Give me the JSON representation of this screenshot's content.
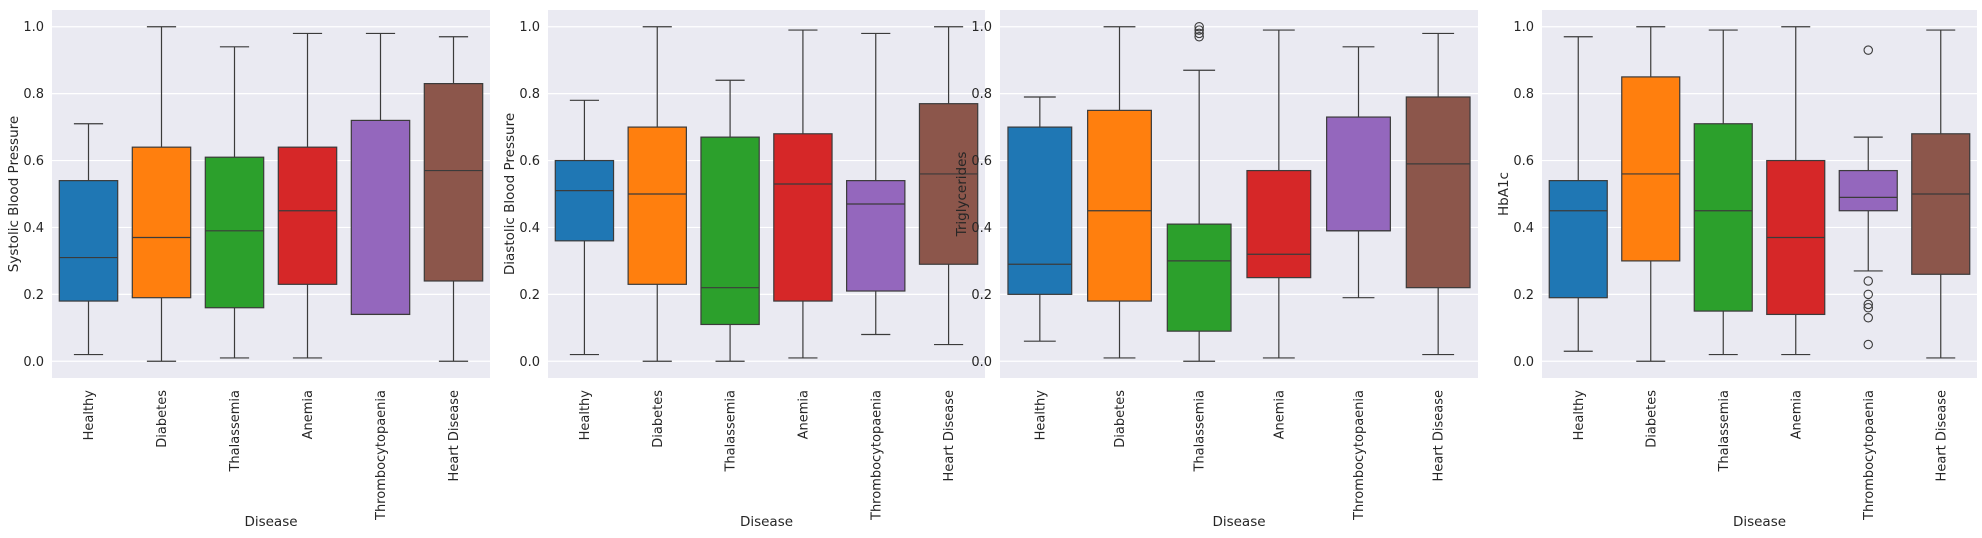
{
  "chart_data": [
    {
      "type": "box",
      "xlabel": "Disease",
      "ylabel": "Systolic Blood Pressure",
      "ylim": [
        -0.05,
        1.05
      ],
      "yticks": [
        "0.0",
        "0.2",
        "0.4",
        "0.6",
        "0.8",
        "1.0"
      ],
      "grid": true,
      "categories": [
        "Healthy",
        "Diabetes",
        "Thalassemia",
        "Anemia",
        "Thrombocytopaenia",
        "Heart Disease"
      ],
      "boxes": [
        {
          "min": 0.02,
          "q1": 0.18,
          "median": 0.31,
          "q3": 0.54,
          "max": 0.71,
          "outliers": []
        },
        {
          "min": 0.0,
          "q1": 0.19,
          "median": 0.37,
          "q3": 0.64,
          "max": 1.0,
          "outliers": []
        },
        {
          "min": 0.01,
          "q1": 0.16,
          "median": 0.39,
          "q3": 0.61,
          "max": 0.94,
          "outliers": []
        },
        {
          "min": 0.01,
          "q1": 0.23,
          "median": 0.45,
          "q3": 0.64,
          "max": 0.98,
          "outliers": []
        },
        {
          "min": 0.14,
          "q1": 0.14,
          "median": 0.14,
          "q3": 0.72,
          "max": 0.98,
          "outliers": []
        },
        {
          "min": 0.0,
          "q1": 0.24,
          "median": 0.57,
          "q3": 0.83,
          "max": 0.97,
          "outliers": []
        }
      ]
    },
    {
      "type": "box",
      "xlabel": "Disease",
      "ylabel": "Diastolic Blood Pressure",
      "ylim": [
        -0.05,
        1.05
      ],
      "yticks": [
        "0.0",
        "0.2",
        "0.4",
        "0.6",
        "0.8",
        "1.0"
      ],
      "grid": true,
      "categories": [
        "Healthy",
        "Diabetes",
        "Thalassemia",
        "Anemia",
        "Thrombocytopaenia",
        "Heart Disease"
      ],
      "boxes": [
        {
          "min": 0.02,
          "q1": 0.36,
          "median": 0.51,
          "q3": 0.6,
          "max": 0.78,
          "outliers": []
        },
        {
          "min": 0.0,
          "q1": 0.23,
          "median": 0.5,
          "q3": 0.7,
          "max": 1.0,
          "outliers": []
        },
        {
          "min": 0.0,
          "q1": 0.11,
          "median": 0.22,
          "q3": 0.67,
          "max": 0.84,
          "outliers": []
        },
        {
          "min": 0.01,
          "q1": 0.18,
          "median": 0.53,
          "q3": 0.68,
          "max": 0.99,
          "outliers": []
        },
        {
          "min": 0.08,
          "q1": 0.21,
          "median": 0.47,
          "q3": 0.54,
          "max": 0.98,
          "outliers": []
        },
        {
          "min": 0.05,
          "q1": 0.29,
          "median": 0.56,
          "q3": 0.77,
          "max": 1.0,
          "outliers": []
        }
      ]
    },
    {
      "type": "box",
      "xlabel": "Disease",
      "ylabel": "Triglycerides",
      "ylim": [
        -0.05,
        1.05
      ],
      "yticks": [
        "0.0",
        "0.2",
        "0.4",
        "0.6",
        "0.8",
        "1.0"
      ],
      "grid": true,
      "categories": [
        "Healthy",
        "Diabetes",
        "Thalassemia",
        "Anemia",
        "Thrombocytopaenia",
        "Heart Disease"
      ],
      "boxes": [
        {
          "min": 0.06,
          "q1": 0.2,
          "median": 0.29,
          "q3": 0.7,
          "max": 0.79,
          "outliers": []
        },
        {
          "min": 0.01,
          "q1": 0.18,
          "median": 0.45,
          "q3": 0.75,
          "max": 1.0,
          "outliers": []
        },
        {
          "min": 0.0,
          "q1": 0.09,
          "median": 0.3,
          "q3": 0.41,
          "max": 0.87,
          "outliers": [
            0.97,
            0.98,
            0.99,
            1.0
          ]
        },
        {
          "min": 0.01,
          "q1": 0.25,
          "median": 0.32,
          "q3": 0.57,
          "max": 0.99,
          "outliers": []
        },
        {
          "min": 0.19,
          "q1": 0.39,
          "median": 0.39,
          "q3": 0.73,
          "max": 0.94,
          "outliers": []
        },
        {
          "min": 0.02,
          "q1": 0.22,
          "median": 0.59,
          "q3": 0.79,
          "max": 0.98,
          "outliers": []
        }
      ]
    },
    {
      "type": "box",
      "xlabel": "Disease",
      "ylabel": "HbA1c",
      "ylim": [
        -0.05,
        1.05
      ],
      "yticks": [
        "0.0",
        "0.2",
        "0.4",
        "0.6",
        "0.8",
        "1.0"
      ],
      "grid": true,
      "categories": [
        "Healthy",
        "Diabetes",
        "Thalassemia",
        "Anemia",
        "Thrombocytopaenia",
        "Heart Disease"
      ],
      "boxes": [
        {
          "min": 0.03,
          "q1": 0.19,
          "median": 0.45,
          "q3": 0.54,
          "max": 0.97,
          "outliers": []
        },
        {
          "min": 0.0,
          "q1": 0.3,
          "median": 0.56,
          "q3": 0.85,
          "max": 1.0,
          "outliers": []
        },
        {
          "min": 0.02,
          "q1": 0.15,
          "median": 0.45,
          "q3": 0.71,
          "max": 0.99,
          "outliers": []
        },
        {
          "min": 0.02,
          "q1": 0.14,
          "median": 0.37,
          "q3": 0.6,
          "max": 1.0,
          "outliers": []
        },
        {
          "min": 0.27,
          "q1": 0.45,
          "median": 0.49,
          "q3": 0.57,
          "max": 0.67,
          "outliers": [
            0.93,
            0.24,
            0.2,
            0.17,
            0.16,
            0.13,
            0.05
          ]
        },
        {
          "min": 0.01,
          "q1": 0.26,
          "median": 0.5,
          "q3": 0.68,
          "max": 0.99,
          "outliers": []
        }
      ]
    }
  ],
  "palette": [
    "#1f77b4",
    "#ff7f0e",
    "#2ca02c",
    "#d62728",
    "#9467bd",
    "#8c564b"
  ],
  "style": {
    "plot_bg": "#eaeaf2",
    "grid_color": "#ffffff",
    "line_color": "#3b3b3b"
  }
}
